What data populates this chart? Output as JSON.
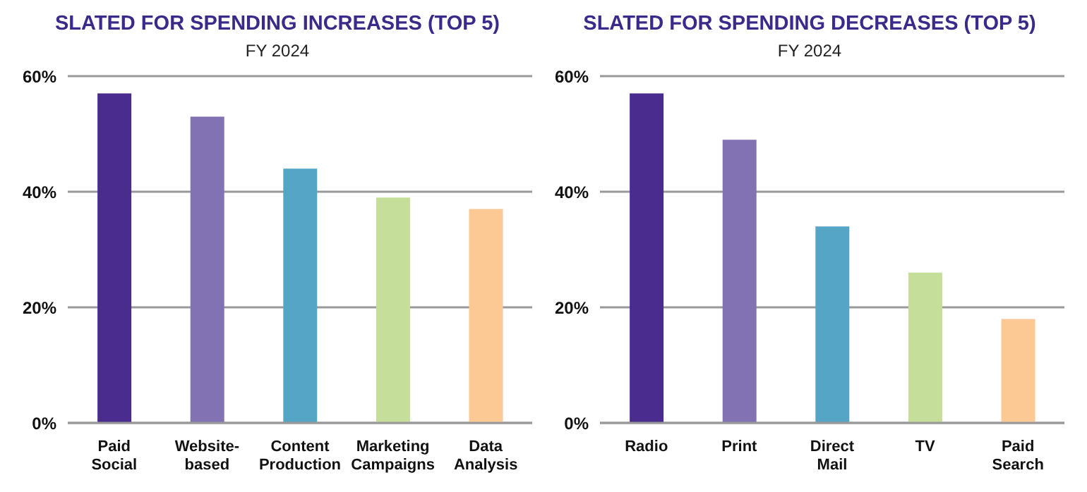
{
  "chart_data": [
    {
      "type": "bar",
      "title": "SLATED FOR SPENDING INCREASES (TOP 5)",
      "subtitle": "FY 2024",
      "categories": [
        "Paid Social",
        "Website-based",
        "Content Production",
        "Marketing Campaigns",
        "Data Analysis"
      ],
      "values": [
        57,
        53,
        44,
        39,
        37
      ],
      "colors": [
        "#4a2c8f",
        "#8272b4",
        "#55a5c6",
        "#c5df9a",
        "#fcc994"
      ],
      "ylim": [
        0,
        60
      ],
      "yticks": [
        {
          "value": 0,
          "label": "0%"
        },
        {
          "value": 20,
          "label": "20%"
        },
        {
          "value": 40,
          "label": "40%"
        },
        {
          "value": 60,
          "label": "60%"
        }
      ],
      "grid": "y"
    },
    {
      "type": "bar",
      "title": "SLATED FOR SPENDING DECREASES (TOP 5)",
      "subtitle": "FY 2024",
      "categories": [
        "Radio",
        "Print",
        "Direct Mail",
        "TV",
        "Paid Search"
      ],
      "values": [
        57,
        49,
        34,
        26,
        18
      ],
      "colors": [
        "#4a2c8f",
        "#8272b4",
        "#55a5c6",
        "#c5df9a",
        "#fcc994"
      ],
      "ylim": [
        0,
        60
      ],
      "yticks": [
        {
          "value": 0,
          "label": "0%"
        },
        {
          "value": 20,
          "label": "20%"
        },
        {
          "value": 40,
          "label": "40%"
        },
        {
          "value": 60,
          "label": "60%"
        }
      ],
      "grid": "y"
    }
  ]
}
